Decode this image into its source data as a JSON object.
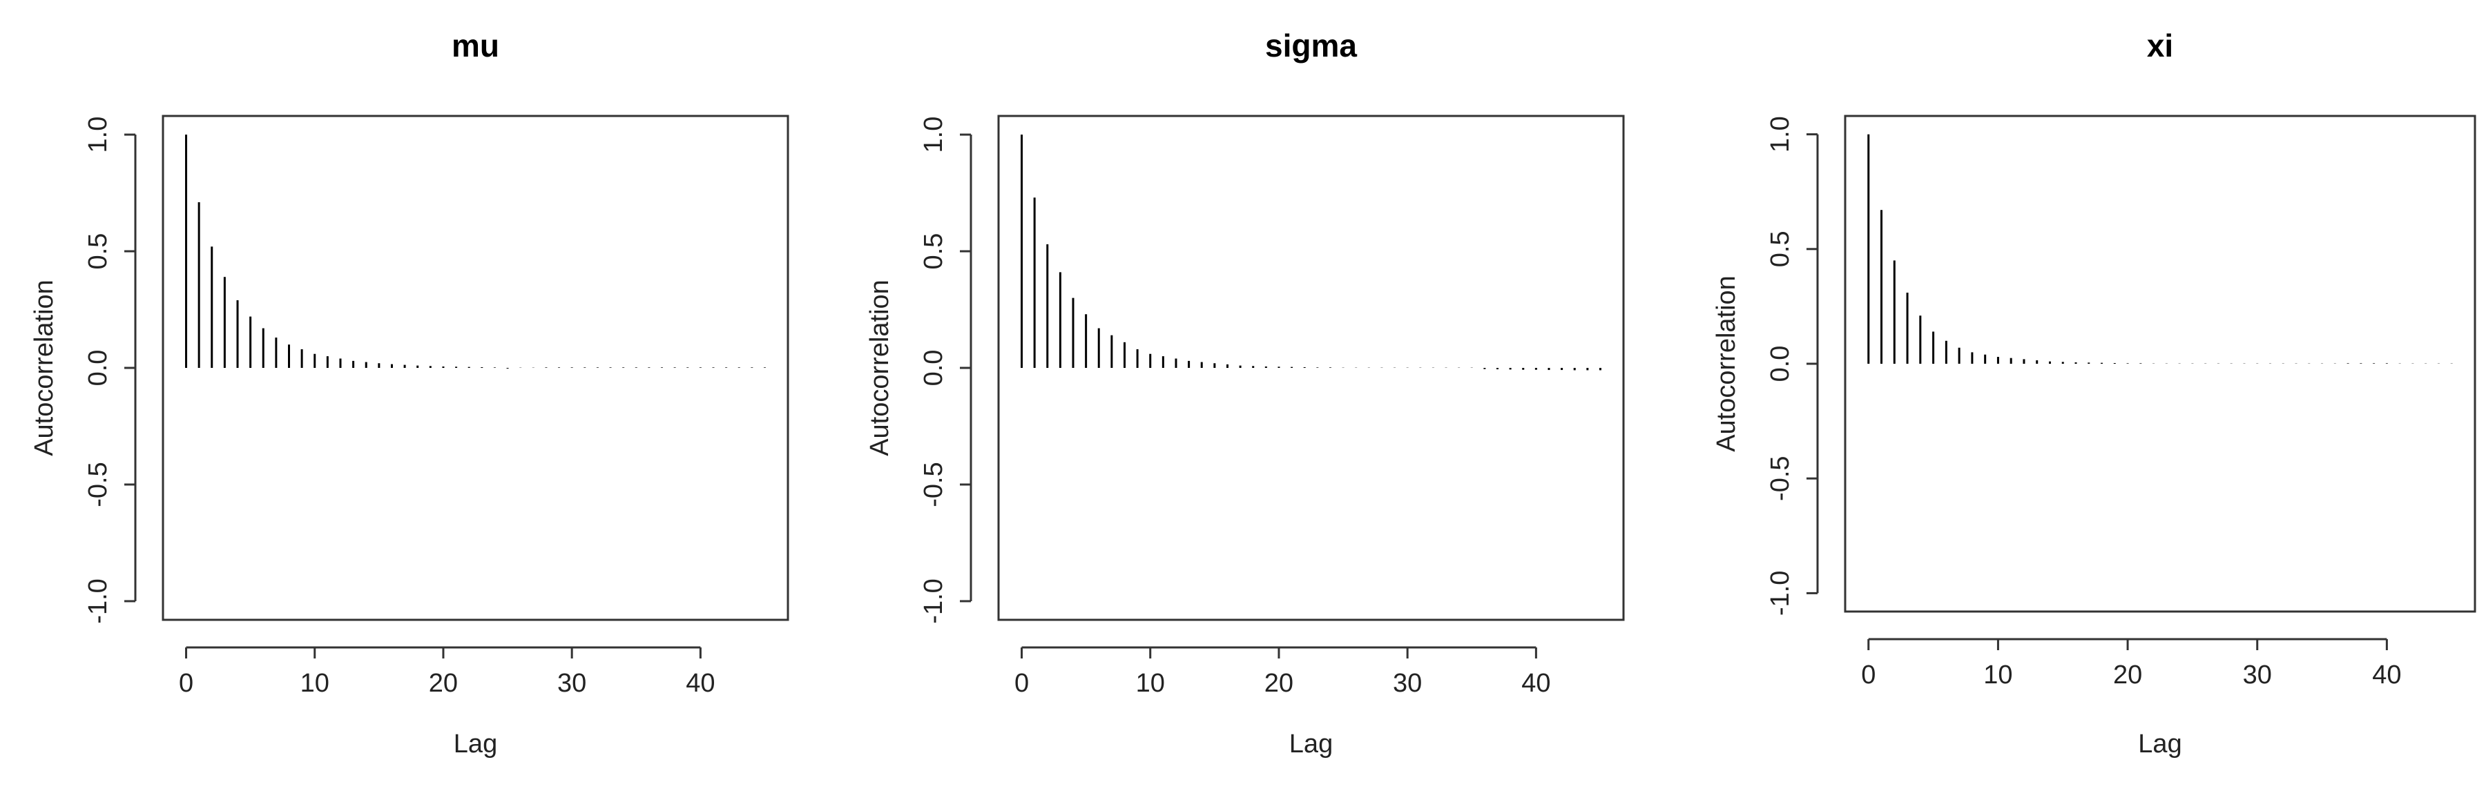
{
  "chart_data": [
    {
      "type": "acf",
      "title": "mu",
      "xlabel": "Lag",
      "ylabel": "Autocorrelation",
      "x": [
        0,
        1,
        2,
        3,
        4,
        5,
        6,
        7,
        8,
        9,
        10,
        11,
        12,
        13,
        14,
        15,
        16,
        17,
        18,
        19,
        20,
        21,
        22,
        23,
        24,
        25,
        26,
        27,
        28,
        29,
        30,
        31,
        32,
        33,
        34,
        35,
        36,
        37,
        38,
        39,
        40,
        41,
        42,
        43,
        44,
        45
      ],
      "values": [
        1,
        0.71,
        0.52,
        0.39,
        0.29,
        0.22,
        0.17,
        0.13,
        0.1,
        0.08,
        0.06,
        0.05,
        0.04,
        0.03,
        0.025,
        0.02,
        0.016,
        0.013,
        0.01,
        0.008,
        0.006,
        0.005,
        0.004,
        0.003,
        0.002,
        -0.003,
        0.001,
        0.001,
        0.002,
        0.002,
        0.002,
        0.002,
        0.002,
        0.002,
        0.002,
        0.002,
        0.002,
        0.002,
        0.002,
        0.002,
        0.002,
        0.002,
        0.002,
        0.002,
        0.002,
        0.002
      ],
      "color": "#000000",
      "xlim": [
        -1.8,
        46.8
      ],
      "ylim": [
        -1.08,
        1.08
      ],
      "xticks": [
        0,
        10,
        20,
        30,
        40
      ],
      "yticks": [
        {
          "value": -1,
          "label": "-1.0"
        },
        -0.5,
        {
          "value": 0,
          "label": "0.0"
        },
        0.5,
        {
          "value": 1,
          "label": "1.0"
        }
      ]
    },
    {
      "type": "acf",
      "title": "sigma",
      "xlabel": "Lag",
      "ylabel": "Autocorrelation",
      "x": [
        0,
        1,
        2,
        3,
        4,
        5,
        6,
        7,
        8,
        9,
        10,
        11,
        12,
        13,
        14,
        15,
        16,
        17,
        18,
        19,
        20,
        21,
        22,
        23,
        24,
        25,
        26,
        27,
        28,
        29,
        30,
        31,
        32,
        33,
        34,
        35,
        36,
        37,
        38,
        39,
        40,
        41,
        42,
        43,
        44,
        45
      ],
      "values": [
        1,
        0.73,
        0.53,
        0.41,
        0.3,
        0.23,
        0.17,
        0.14,
        0.11,
        0.08,
        0.06,
        0.05,
        0.04,
        0.03,
        0.025,
        0.02,
        0.015,
        0.01,
        0.008,
        0.006,
        0.005,
        0.004,
        0.003,
        0.002,
        0.002,
        0.001,
        0.001,
        0.001,
        0.001,
        0.001,
        0.001,
        0.001,
        0.001,
        0.001,
        0.001,
        0.001,
        -0.005,
        -0.006,
        -0.007,
        -0.008,
        -0.008,
        -0.009,
        -0.009,
        -0.01,
        -0.01,
        -0.01
      ],
      "color": "#000000",
      "xlim": [
        -1.8,
        46.8
      ],
      "ylim": [
        -1.08,
        1.08
      ],
      "xticks": [
        0,
        10,
        20,
        30,
        40
      ],
      "yticks": [
        {
          "value": -1,
          "label": "-1.0"
        },
        -0.5,
        {
          "value": 0,
          "label": "0.0"
        },
        0.5,
        {
          "value": 1,
          "label": "1.0"
        }
      ]
    },
    {
      "type": "acf",
      "title": "xi",
      "xlabel": "Lag",
      "ylabel": "Autocorrelation",
      "x": [
        0,
        1,
        2,
        3,
        4,
        5,
        6,
        7,
        8,
        9,
        10,
        11,
        12,
        13,
        14,
        15,
        16,
        17,
        18,
        19,
        20,
        21,
        22,
        23,
        24,
        25,
        26,
        27,
        28,
        29,
        30,
        31,
        32,
        33,
        34,
        35,
        36,
        37,
        38,
        39,
        40,
        41,
        42,
        43,
        44,
        45
      ],
      "values": [
        1,
        0.67,
        0.45,
        0.31,
        0.21,
        0.14,
        0.1,
        0.07,
        0.05,
        0.04,
        0.03,
        0.025,
        0.02,
        0.015,
        0.01,
        0.008,
        0.006,
        0.005,
        0.004,
        0.003,
        0.002,
        0.002,
        0.001,
        0.001,
        0.001,
        0.001,
        0.001,
        0.001,
        0.001,
        0.001,
        0.001,
        0.001,
        0.001,
        0.001,
        0.001,
        0.001,
        0.001,
        0.002,
        0.002,
        0.002,
        0.002,
        0.001,
        0.001,
        0.001,
        0.001,
        0.001
      ],
      "color": "#000000",
      "xlim": [
        -1.8,
        46.8
      ],
      "ylim": [
        -1.08,
        1.08
      ],
      "xticks": [
        0,
        10,
        20,
        30,
        40
      ],
      "yticks": [
        {
          "value": -1,
          "label": "-1.0"
        },
        -0.5,
        {
          "value": 0,
          "label": "0.0"
        },
        0.5,
        {
          "value": 1,
          "label": "1.0"
        }
      ]
    }
  ]
}
